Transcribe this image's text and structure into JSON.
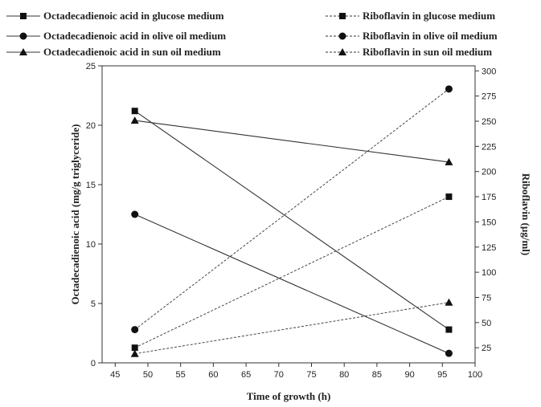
{
  "chart_data": {
    "type": "line",
    "xlabel": "Time of growth (h)",
    "ylabel_left": "Octadecadienoic acid (mg/g triglyceride)",
    "ylabel_right": "Riboflavin (µg/ml)",
    "x_ticks": [
      "45",
      "50",
      "55",
      "60",
      "65",
      "70",
      "75",
      "80",
      "85",
      "90",
      "95",
      "100"
    ],
    "y_left_ticks": [
      "0",
      "5",
      "10",
      "15",
      "20",
      "25"
    ],
    "y_right_ticks": [
      "25",
      "50",
      "75",
      "100",
      "125",
      "150",
      "175",
      "200",
      "225",
      "250",
      "275",
      "300"
    ],
    "xlim": [
      43,
      100
    ],
    "ylim_left": [
      0,
      25
    ],
    "ylim_right": [
      10,
      305
    ],
    "grid": false,
    "legend_position": "top",
    "series": [
      {
        "name": "Octadecadienoic acid in glucose medium",
        "axis": "left",
        "marker": "square",
        "dash": "solid",
        "x": [
          48,
          96
        ],
        "y": [
          21.2,
          2.8
        ]
      },
      {
        "name": "Octadecadienoic acid in olive oil medium",
        "axis": "left",
        "marker": "circle",
        "dash": "solid",
        "x": [
          48,
          96
        ],
        "y": [
          12.5,
          0.8
        ]
      },
      {
        "name": "Octadecadienoic acid in sun oil medium",
        "axis": "left",
        "marker": "triangle",
        "dash": "solid",
        "x": [
          48,
          96
        ],
        "y": [
          20.4,
          16.9
        ]
      },
      {
        "name": "Riboflavin in glucose medium",
        "axis": "right",
        "marker": "square",
        "dash": "dotted",
        "x": [
          48,
          96
        ],
        "y": [
          25,
          175
        ]
      },
      {
        "name": "Riboflavin in olive oil medium",
        "axis": "right",
        "marker": "circle",
        "dash": "dotted",
        "x": [
          48,
          96
        ],
        "y": [
          43,
          282
        ]
      },
      {
        "name": "Riboflavin in sun oil medium",
        "axis": "right",
        "marker": "triangle",
        "dash": "dotted",
        "x": [
          48,
          96
        ],
        "y": [
          19,
          70
        ]
      }
    ]
  }
}
